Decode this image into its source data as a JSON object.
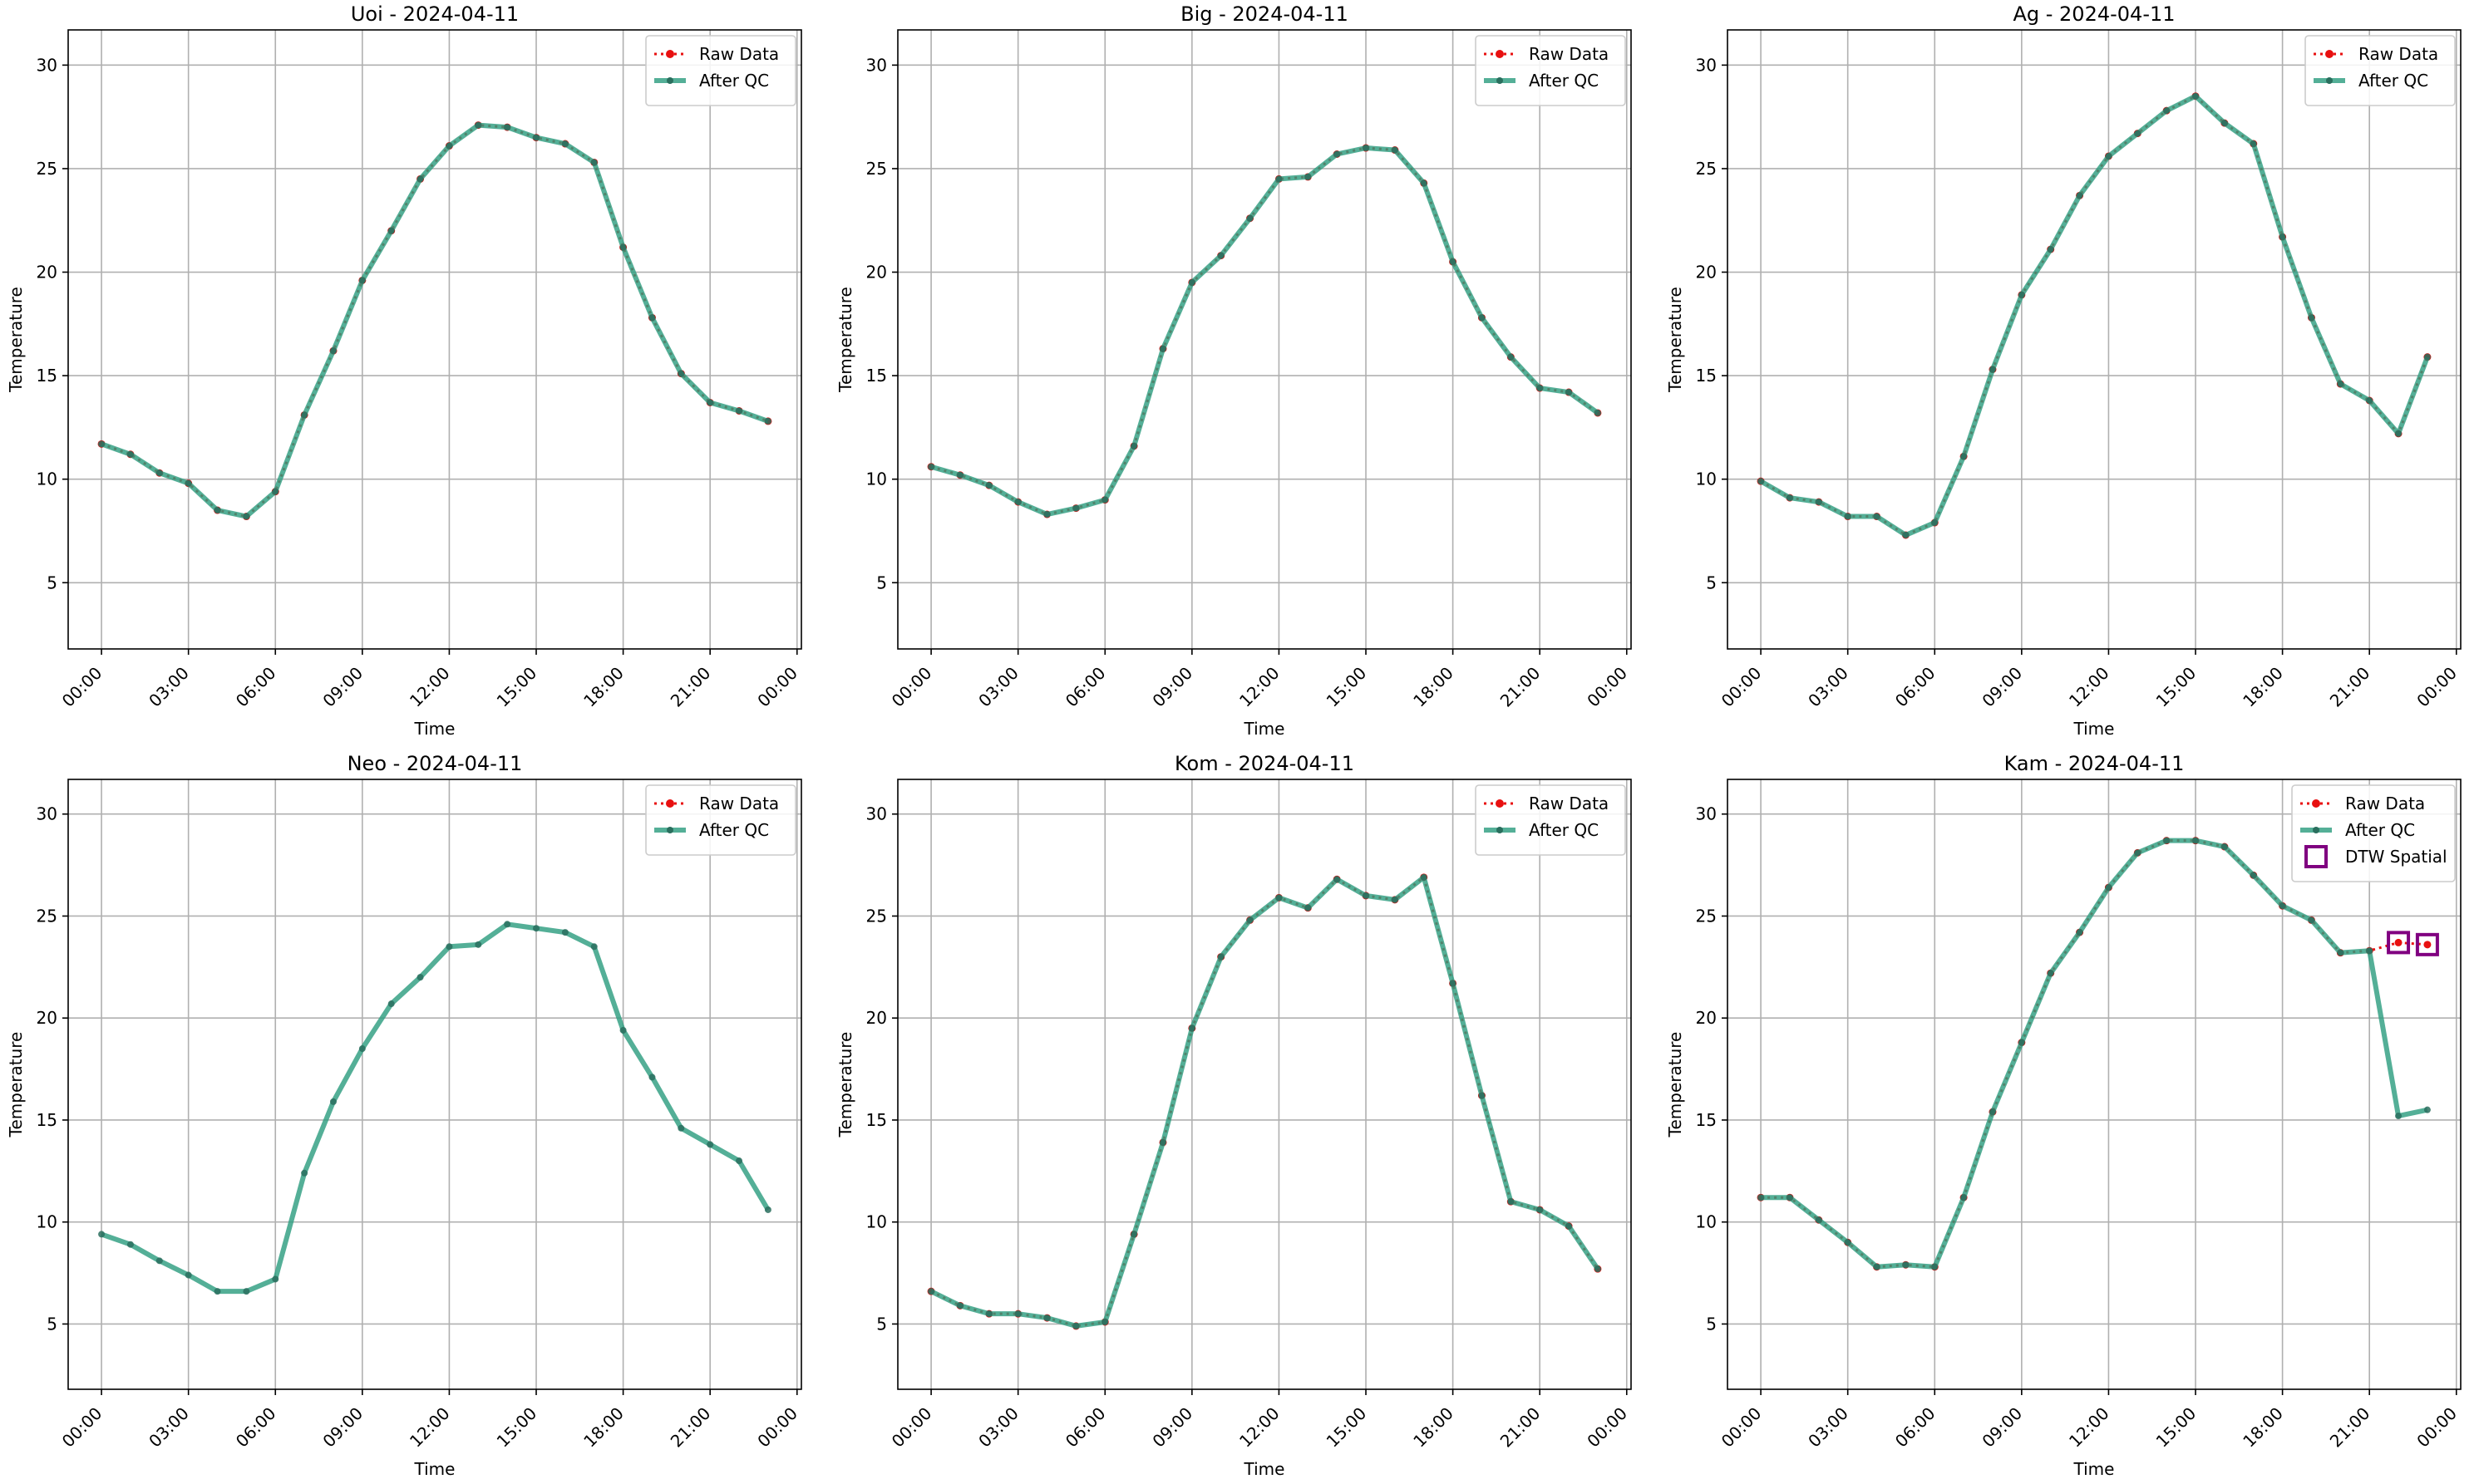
{
  "colors": {
    "raw": "#e81010",
    "qc": "#2e9d80",
    "qc_marker": "#2a6f5e",
    "dtw": "#800080",
    "grid": "#b0b0b0",
    "axis": "#000000"
  },
  "chart_data": [
    {
      "type": "line",
      "title": "Uoi - 2024-04-11",
      "xlabel": "Time",
      "ylabel": "Temperature",
      "ylim": [
        1.8,
        31.7
      ],
      "xlim": [
        -1.15,
        24.15
      ],
      "x_ticks": [
        0,
        3,
        6,
        9,
        12,
        15,
        18,
        21,
        24
      ],
      "x_tick_labels": [
        "00:00",
        "03:00",
        "06:00",
        "09:00",
        "12:00",
        "15:00",
        "18:00",
        "21:00",
        "00:00"
      ],
      "y_ticks": [
        5,
        10,
        15,
        20,
        25,
        30
      ],
      "y_tick_labels": [
        "5",
        "10",
        "15",
        "20",
        "25",
        "30"
      ],
      "grid": true,
      "legend_position": "top-right",
      "legend": [
        "Raw Data",
        "After QC"
      ],
      "x": [
        0,
        1,
        2,
        3,
        4,
        5,
        6,
        7,
        8,
        9,
        10,
        11,
        12,
        13,
        14,
        15,
        16,
        17,
        18,
        19,
        20,
        21,
        22,
        23
      ],
      "series": [
        {
          "name": "Raw Data",
          "values": [
            11.7,
            11.2,
            10.3,
            9.8,
            8.5,
            8.2,
            9.4,
            13.1,
            16.2,
            19.6,
            22.0,
            24.5,
            26.1,
            27.1,
            27.0,
            26.5,
            26.2,
            25.3,
            21.2,
            17.8,
            15.1,
            13.7,
            13.3,
            12.8
          ]
        },
        {
          "name": "After QC",
          "values": [
            11.7,
            11.2,
            10.3,
            9.8,
            8.5,
            8.2,
            9.4,
            13.1,
            16.2,
            19.6,
            22.0,
            24.5,
            26.1,
            27.1,
            27.0,
            26.5,
            26.2,
            25.3,
            21.2,
            17.8,
            15.1,
            13.7,
            13.3,
            12.8
          ]
        }
      ]
    },
    {
      "type": "line",
      "title": "Big - 2024-04-11",
      "xlabel": "Time",
      "ylabel": "Temperature",
      "ylim": [
        1.8,
        31.7
      ],
      "xlim": [
        -1.15,
        24.15
      ],
      "x_ticks": [
        0,
        3,
        6,
        9,
        12,
        15,
        18,
        21,
        24
      ],
      "x_tick_labels": [
        "00:00",
        "03:00",
        "06:00",
        "09:00",
        "12:00",
        "15:00",
        "18:00",
        "21:00",
        "00:00"
      ],
      "y_ticks": [
        5,
        10,
        15,
        20,
        25,
        30
      ],
      "y_tick_labels": [
        "5",
        "10",
        "15",
        "20",
        "25",
        "30"
      ],
      "grid": true,
      "legend_position": "top-right",
      "legend": [
        "Raw Data",
        "After QC"
      ],
      "x": [
        0,
        1,
        2,
        3,
        4,
        5,
        6,
        7,
        8,
        9,
        10,
        11,
        12,
        13,
        14,
        15,
        16,
        17,
        18,
        19,
        20,
        21,
        22,
        23
      ],
      "series": [
        {
          "name": "Raw Data",
          "values": [
            10.6,
            10.2,
            9.7,
            8.9,
            8.3,
            8.6,
            9.0,
            11.6,
            16.3,
            19.5,
            20.8,
            22.6,
            24.5,
            24.6,
            25.7,
            26.0,
            25.9,
            24.3,
            20.5,
            17.8,
            15.9,
            14.4,
            14.2,
            13.2
          ]
        },
        {
          "name": "After QC",
          "values": [
            10.6,
            10.2,
            9.7,
            8.9,
            8.3,
            8.6,
            9.0,
            11.6,
            16.3,
            19.5,
            20.8,
            22.6,
            24.5,
            24.6,
            25.7,
            26.0,
            25.9,
            24.3,
            20.5,
            17.8,
            15.9,
            14.4,
            14.2,
            13.2
          ]
        }
      ]
    },
    {
      "type": "line",
      "title": "Ag - 2024-04-11",
      "xlabel": "Time",
      "ylabel": "Temperature",
      "ylim": [
        1.8,
        31.7
      ],
      "xlim": [
        -1.15,
        24.15
      ],
      "x_ticks": [
        0,
        3,
        6,
        9,
        12,
        15,
        18,
        21,
        24
      ],
      "x_tick_labels": [
        "00:00",
        "03:00",
        "06:00",
        "09:00",
        "12:00",
        "15:00",
        "18:00",
        "21:00",
        "00:00"
      ],
      "y_ticks": [
        5,
        10,
        15,
        20,
        25,
        30
      ],
      "y_tick_labels": [
        "5",
        "10",
        "15",
        "20",
        "25",
        "30"
      ],
      "grid": true,
      "legend_position": "top-right",
      "legend": [
        "Raw Data",
        "After QC"
      ],
      "x": [
        0,
        1,
        2,
        3,
        4,
        5,
        6,
        7,
        8,
        9,
        10,
        11,
        12,
        13,
        14,
        15,
        16,
        17,
        18,
        19,
        20,
        21,
        22,
        23
      ],
      "series": [
        {
          "name": "Raw Data",
          "values": [
            9.9,
            9.1,
            8.9,
            8.2,
            8.2,
            7.3,
            7.9,
            11.1,
            15.3,
            18.9,
            21.1,
            23.7,
            25.6,
            26.7,
            27.8,
            28.5,
            27.2,
            26.2,
            21.7,
            17.8,
            14.6,
            13.8,
            12.2,
            15.9
          ]
        },
        {
          "name": "After QC",
          "values": [
            9.9,
            9.1,
            8.9,
            8.2,
            8.2,
            7.3,
            7.9,
            11.1,
            15.3,
            18.9,
            21.1,
            23.7,
            25.6,
            26.7,
            27.8,
            28.5,
            27.2,
            26.2,
            21.7,
            17.8,
            14.6,
            13.8,
            12.2,
            15.9
          ]
        }
      ]
    },
    {
      "type": "line",
      "title": "Neo - 2024-04-11",
      "xlabel": "Time",
      "ylabel": "Temperature",
      "ylim": [
        1.8,
        31.7
      ],
      "xlim": [
        -1.15,
        24.15
      ],
      "x_ticks": [
        0,
        3,
        6,
        9,
        12,
        15,
        18,
        21,
        24
      ],
      "x_tick_labels": [
        "00:00",
        "03:00",
        "06:00",
        "09:00",
        "12:00",
        "15:00",
        "18:00",
        "21:00",
        "00:00"
      ],
      "y_ticks": [
        5,
        10,
        15,
        20,
        25,
        30
      ],
      "y_tick_labels": [
        "5",
        "10",
        "15",
        "20",
        "25",
        "30"
      ],
      "grid": true,
      "legend_position": "top-right",
      "legend": [
        "Raw Data",
        "After QC"
      ],
      "x": [
        0,
        1,
        2,
        3,
        4,
        5,
        6,
        7,
        8,
        9,
        10,
        11,
        12,
        13,
        14,
        15,
        16,
        17,
        18,
        19,
        20,
        21,
        22,
        23
      ],
      "series": [
        {
          "name": "After QC",
          "values": [
            9.4,
            8.9,
            8.1,
            7.4,
            6.6,
            6.6,
            7.2,
            12.4,
            15.9,
            18.5,
            20.7,
            22.0,
            23.5,
            23.6,
            24.6,
            24.4,
            24.2,
            23.5,
            19.4,
            17.1,
            14.6,
            13.8,
            13.0,
            10.6
          ]
        }
      ]
    },
    {
      "type": "line",
      "title": "Kom - 2024-04-11",
      "xlabel": "Time",
      "ylabel": "Temperature",
      "ylim": [
        1.8,
        31.7
      ],
      "xlim": [
        -1.15,
        24.15
      ],
      "x_ticks": [
        0,
        3,
        6,
        9,
        12,
        15,
        18,
        21,
        24
      ],
      "x_tick_labels": [
        "00:00",
        "03:00",
        "06:00",
        "09:00",
        "12:00",
        "15:00",
        "18:00",
        "21:00",
        "00:00"
      ],
      "y_ticks": [
        5,
        10,
        15,
        20,
        25,
        30
      ],
      "y_tick_labels": [
        "5",
        "10",
        "15",
        "20",
        "25",
        "30"
      ],
      "grid": true,
      "legend_position": "top-right",
      "legend": [
        "Raw Data",
        "After QC"
      ],
      "x": [
        0,
        1,
        2,
        3,
        4,
        5,
        6,
        7,
        8,
        9,
        10,
        11,
        12,
        13,
        14,
        15,
        16,
        17,
        18,
        19,
        20,
        21,
        22,
        23
      ],
      "series": [
        {
          "name": "Raw Data",
          "values": [
            6.6,
            5.9,
            5.5,
            5.5,
            5.3,
            4.9,
            5.1,
            9.4,
            13.9,
            19.5,
            23.0,
            24.8,
            25.9,
            25.4,
            26.8,
            26.0,
            25.8,
            26.9,
            21.7,
            16.2,
            11.0,
            10.6,
            9.8,
            7.7
          ]
        },
        {
          "name": "After QC",
          "values": [
            6.6,
            5.9,
            5.5,
            5.5,
            5.3,
            4.9,
            5.1,
            9.4,
            13.9,
            19.5,
            23.0,
            24.8,
            25.9,
            25.4,
            26.8,
            26.0,
            25.8,
            26.9,
            21.7,
            16.2,
            11.0,
            10.6,
            9.8,
            7.7
          ]
        }
      ]
    },
    {
      "type": "line",
      "title": "Kam - 2024-04-11",
      "xlabel": "Time",
      "ylabel": "Temperature",
      "ylim": [
        1.8,
        31.7
      ],
      "xlim": [
        -1.15,
        24.15
      ],
      "x_ticks": [
        0,
        3,
        6,
        9,
        12,
        15,
        18,
        21,
        24
      ],
      "x_tick_labels": [
        "00:00",
        "03:00",
        "06:00",
        "09:00",
        "12:00",
        "15:00",
        "18:00",
        "21:00",
        "00:00"
      ],
      "y_ticks": [
        5,
        10,
        15,
        20,
        25,
        30
      ],
      "y_tick_labels": [
        "5",
        "10",
        "15",
        "20",
        "25",
        "30"
      ],
      "grid": true,
      "legend_position": "top-right",
      "legend": [
        "Raw Data",
        "After QC",
        "DTW Spatial"
      ],
      "x": [
        0,
        1,
        2,
        3,
        4,
        5,
        6,
        7,
        8,
        9,
        10,
        11,
        12,
        13,
        14,
        15,
        16,
        17,
        18,
        19,
        20,
        21,
        22,
        23
      ],
      "series": [
        {
          "name": "Raw Data",
          "values": [
            11.2,
            11.2,
            10.1,
            9.0,
            7.8,
            7.9,
            7.8,
            11.2,
            15.4,
            18.8,
            22.2,
            24.2,
            26.4,
            28.1,
            28.7,
            28.7,
            28.4,
            27.0,
            25.5,
            24.8,
            23.2,
            23.3,
            23.7,
            23.6
          ]
        },
        {
          "name": "After QC",
          "values": [
            11.2,
            11.2,
            10.1,
            9.0,
            7.8,
            7.9,
            7.8,
            11.2,
            15.4,
            18.8,
            22.2,
            24.2,
            26.4,
            28.1,
            28.7,
            28.7,
            28.4,
            27.0,
            25.5,
            24.8,
            23.2,
            23.3,
            15.2,
            15.5
          ]
        }
      ],
      "dtw_spatial": {
        "name": "DTW Spatial",
        "x": [
          22,
          23
        ],
        "values": [
          23.7,
          23.6
        ]
      }
    }
  ]
}
